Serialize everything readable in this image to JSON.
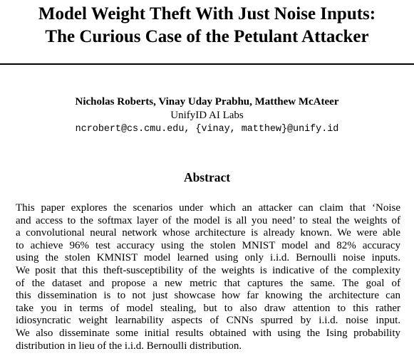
{
  "paper": {
    "title_lines": [
      "Model Weight Theft With Just Noise Inputs:",
      "The Curious Case of the Petulant Attacker"
    ],
    "authors": "Nicholas Roberts, Vinay Uday Prabhu, Matthew McAteer",
    "affiliation": "UnifyID AI Labs",
    "email": "ncrobert@cs.cmu.edu, {vinay, matthew}@unify.id",
    "abstract_heading": "Abstract",
    "abstract_lines": [
      "This paper explores the scenarios under which an attacker can claim that ‘Noise",
      "and access to the softmax layer of the model is all you need’ to steal the weights of",
      "a convolutional neural network whose architecture is already known. We were able",
      "to achieve 96% test accuracy using the stolen MNIST model and 82% accuracy",
      "using the stolen KMNIST model learned using only i.i.d. Bernoulli noise inputs.",
      "We posit that this theft-susceptibility of the weights is indicative of the complexity",
      "of the dataset and propose a new metric that captures the same. The goal of",
      "this dissemination is to not just showcase how far knowing the architecture can",
      "take you in terms of model stealing, but to also draw attention to this rather",
      "idiosyncratic weight learnability aspects of CNNs spurred by i.i.d. noise input.",
      "We also disseminate some initial results obtained with using the Ising probability",
      "distribution in lieu of the i.i.d. Bernoulli distribution."
    ]
  }
}
